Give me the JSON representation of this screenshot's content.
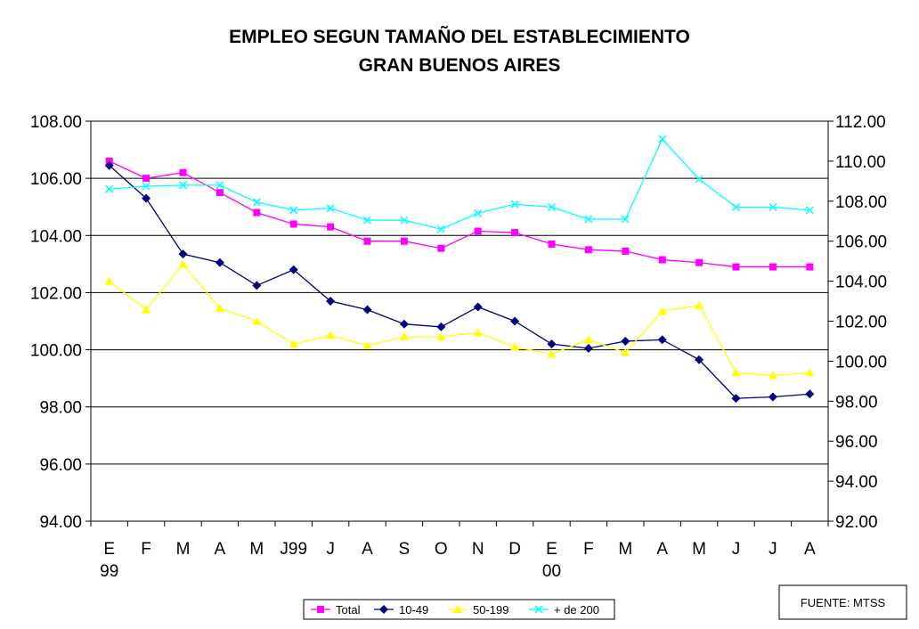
{
  "chart_data": {
    "type": "line",
    "title": "EMPLEO SEGUN TAMAÑO DEL ESTABLECIMIENTO",
    "subtitle": "GRAN BUENOS AIRES",
    "categories": [
      "E\n99",
      "F",
      "M",
      "A",
      "M",
      "J99",
      "J",
      "A",
      "S",
      "O",
      "N",
      "D",
      "E\n00",
      "F",
      "M",
      "A",
      "M",
      "J",
      "J",
      "A"
    ],
    "y_left": {
      "min": 94,
      "max": 108,
      "step": 2,
      "ticks": [
        "94.00",
        "96.00",
        "98.00",
        "100.00",
        "102.00",
        "104.00",
        "106.00",
        "108.00"
      ]
    },
    "y_right": {
      "min": 92,
      "max": 112,
      "step": 2,
      "ticks": [
        "92.00",
        "94.00",
        "96.00",
        "98.00",
        "100.00",
        "102.00",
        "104.00",
        "106.00",
        "108.00",
        "110.00",
        "112.00"
      ]
    },
    "grid": "horizontal",
    "legend_position": "bottom",
    "series": [
      {
        "name": "Total",
        "color": "#ff00ff",
        "marker": "square",
        "axis": "left",
        "values": [
          106.6,
          106.0,
          106.2,
          105.5,
          104.8,
          104.4,
          104.3,
          103.8,
          103.8,
          103.55,
          104.15,
          104.1,
          103.7,
          103.5,
          103.45,
          103.15,
          103.05,
          102.9,
          102.9,
          102.9
        ]
      },
      {
        "name": "10-49",
        "color": "#000080",
        "marker": "diamond",
        "axis": "left",
        "values": [
          106.45,
          105.3,
          103.35,
          103.05,
          102.25,
          102.8,
          101.7,
          101.4,
          100.9,
          100.8,
          101.5,
          101.0,
          100.2,
          100.05,
          100.3,
          100.35,
          99.65,
          98.3,
          98.35,
          98.45
        ]
      },
      {
        "name": "50-199",
        "color": "#ffff00",
        "marker": "triangle",
        "axis": "left",
        "values": [
          102.4,
          101.4,
          103.0,
          101.45,
          101.0,
          100.2,
          100.5,
          100.15,
          100.45,
          100.45,
          100.6,
          100.1,
          99.85,
          100.35,
          99.9,
          101.35,
          101.55,
          99.2,
          99.1,
          99.2
        ]
      },
      {
        "name": "+ de 200",
        "color": "#00ffff",
        "marker": "x",
        "axis": "right",
        "values": [
          108.6,
          108.75,
          108.8,
          108.8,
          107.95,
          107.55,
          107.65,
          107.05,
          107.05,
          106.6,
          107.4,
          107.85,
          107.7,
          107.1,
          107.1,
          111.1,
          109.1,
          107.7,
          107.7,
          107.55
        ]
      }
    ],
    "source": "FUENTE: MTSS"
  }
}
